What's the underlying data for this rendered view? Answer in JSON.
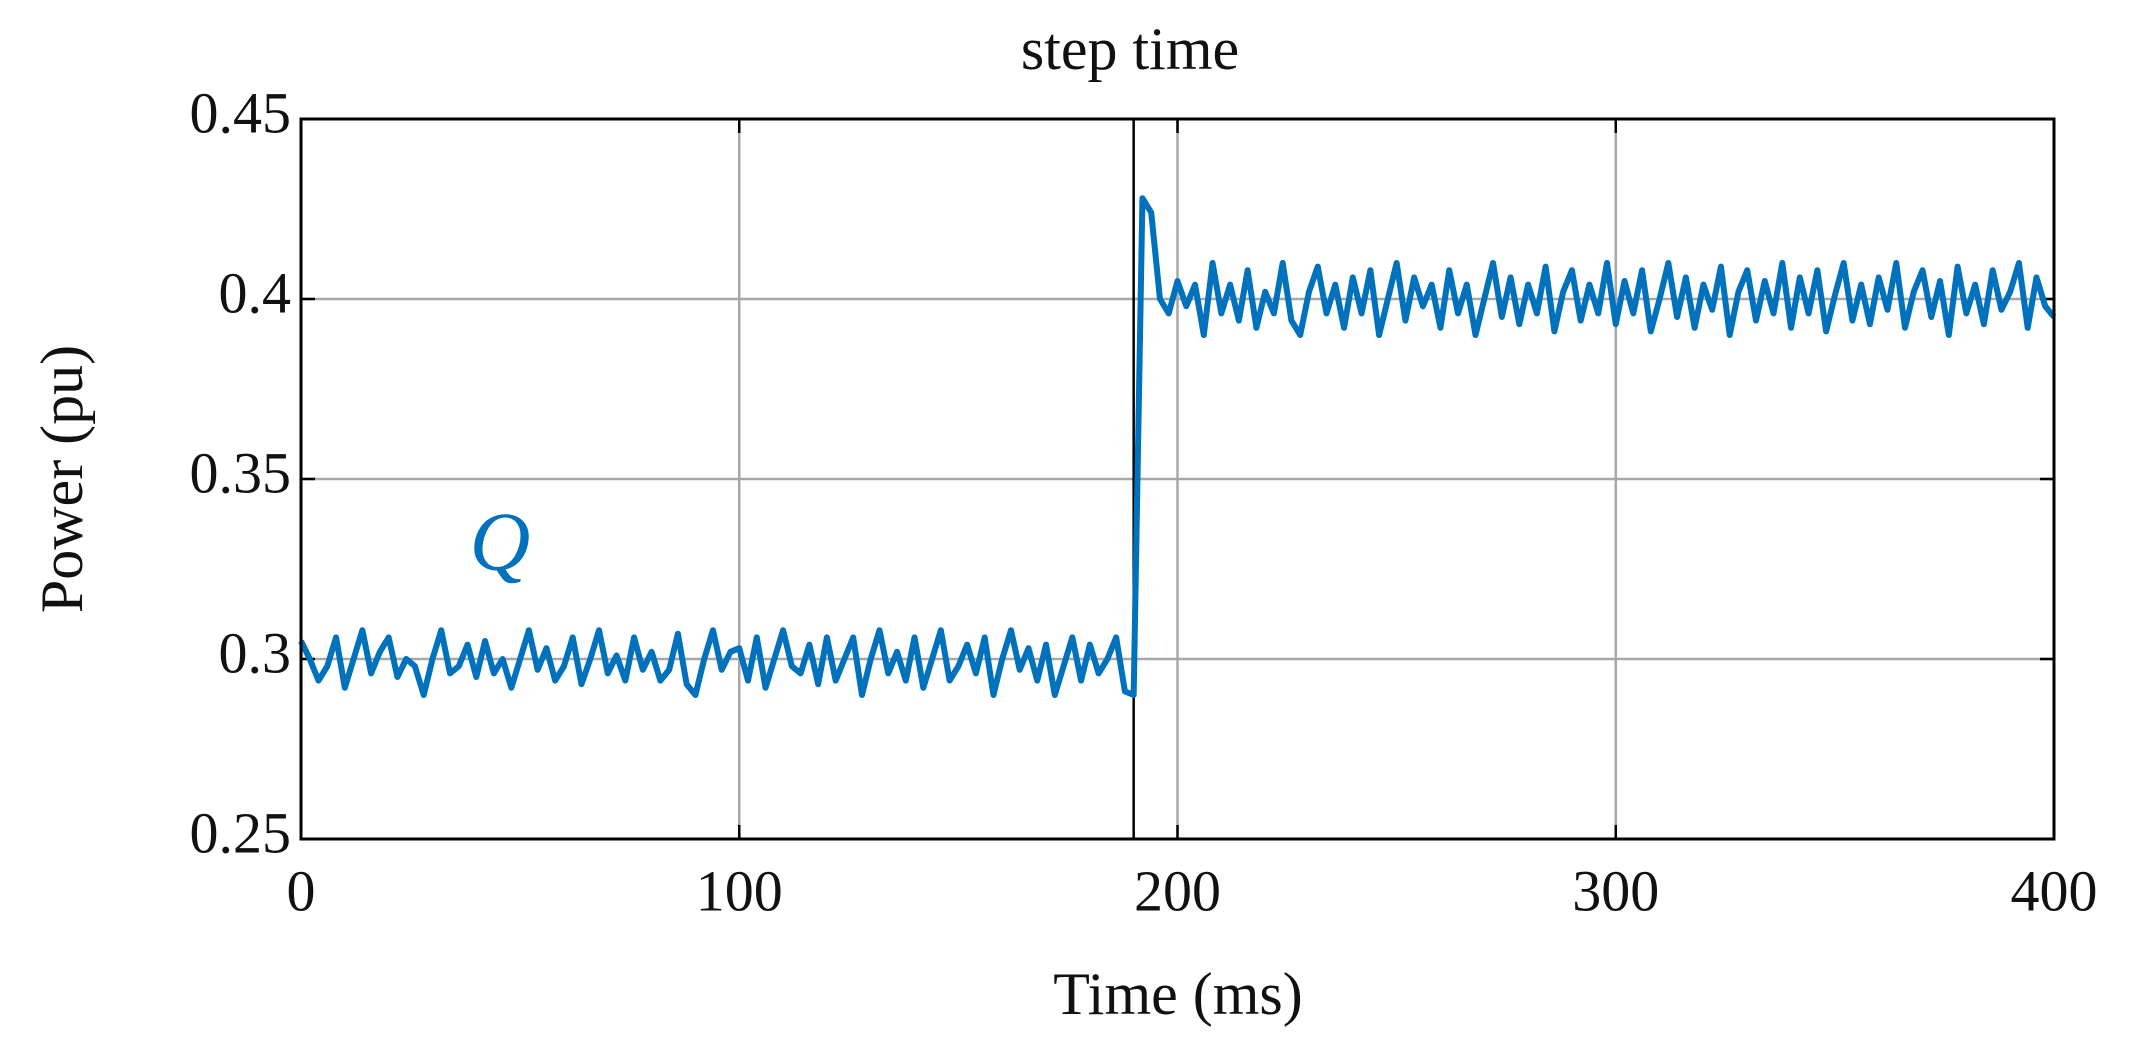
{
  "chart_data": {
    "type": "line",
    "title": "step time",
    "xlabel": "Time (ms)",
    "ylabel": "Power (pu)",
    "x": [
      0,
      2,
      4,
      6,
      8,
      10,
      12,
      14,
      16,
      18,
      20,
      22,
      24,
      26,
      28,
      30,
      32,
      34,
      36,
      38,
      40,
      42,
      44,
      46,
      48,
      50,
      52,
      54,
      56,
      58,
      60,
      62,
      64,
      66,
      68,
      70,
      72,
      74,
      76,
      78,
      80,
      82,
      84,
      86,
      88,
      90,
      92,
      94,
      96,
      98,
      100,
      102,
      104,
      106,
      108,
      110,
      112,
      114,
      116,
      118,
      120,
      122,
      124,
      126,
      128,
      130,
      132,
      134,
      136,
      138,
      140,
      142,
      144,
      146,
      148,
      150,
      152,
      154,
      156,
      158,
      160,
      162,
      164,
      166,
      168,
      170,
      172,
      174,
      176,
      178,
      180,
      182,
      184,
      186,
      188,
      190,
      192,
      194,
      196,
      198,
      200,
      202,
      204,
      206,
      208,
      210,
      212,
      214,
      216,
      218,
      220,
      222,
      224,
      226,
      228,
      230,
      232,
      234,
      236,
      238,
      240,
      242,
      244,
      246,
      248,
      250,
      252,
      254,
      256,
      258,
      260,
      262,
      264,
      266,
      268,
      270,
      272,
      274,
      276,
      278,
      280,
      282,
      284,
      286,
      288,
      290,
      292,
      294,
      296,
      298,
      300,
      302,
      304,
      306,
      308,
      310,
      312,
      314,
      316,
      318,
      320,
      322,
      324,
      326,
      328,
      330,
      332,
      334,
      336,
      338,
      340,
      342,
      344,
      346,
      348,
      350,
      352,
      354,
      356,
      358,
      360,
      362,
      364,
      366,
      368,
      370,
      372,
      374,
      376,
      378,
      380,
      382,
      384,
      386,
      388,
      390,
      392,
      394,
      396,
      398,
      400
    ],
    "series": [
      {
        "name": "Q",
        "color": "#0072bd",
        "values": [
          0.305,
          0.3,
          0.294,
          0.298,
          0.306,
          0.292,
          0.3,
          0.308,
          0.296,
          0.302,
          0.306,
          0.295,
          0.3,
          0.298,
          0.29,
          0.3,
          0.308,
          0.296,
          0.298,
          0.304,
          0.295,
          0.305,
          0.296,
          0.3,
          0.292,
          0.3,
          0.308,
          0.297,
          0.303,
          0.294,
          0.298,
          0.306,
          0.293,
          0.3,
          0.308,
          0.296,
          0.301,
          0.294,
          0.306,
          0.297,
          0.302,
          0.294,
          0.297,
          0.307,
          0.293,
          0.29,
          0.3,
          0.308,
          0.297,
          0.302,
          0.303,
          0.294,
          0.306,
          0.292,
          0.3,
          0.308,
          0.298,
          0.296,
          0.304,
          0.293,
          0.306,
          0.294,
          0.3,
          0.306,
          0.29,
          0.3,
          0.308,
          0.296,
          0.302,
          0.294,
          0.306,
          0.292,
          0.3,
          0.308,
          0.294,
          0.298,
          0.304,
          0.296,
          0.306,
          0.29,
          0.3,
          0.308,
          0.297,
          0.303,
          0.294,
          0.304,
          0.29,
          0.298,
          0.306,
          0.294,
          0.304,
          0.296,
          0.3,
          0.306,
          0.291,
          0.29,
          0.428,
          0.424,
          0.4,
          0.396,
          0.405,
          0.398,
          0.404,
          0.39,
          0.41,
          0.396,
          0.404,
          0.394,
          0.408,
          0.392,
          0.402,
          0.396,
          0.41,
          0.394,
          0.39,
          0.402,
          0.409,
          0.396,
          0.404,
          0.392,
          0.406,
          0.396,
          0.408,
          0.39,
          0.4,
          0.41,
          0.394,
          0.406,
          0.398,
          0.404,
          0.392,
          0.408,
          0.396,
          0.404,
          0.39,
          0.4,
          0.41,
          0.395,
          0.406,
          0.393,
          0.404,
          0.396,
          0.409,
          0.391,
          0.402,
          0.408,
          0.394,
          0.404,
          0.396,
          0.41,
          0.393,
          0.405,
          0.396,
          0.408,
          0.391,
          0.4,
          0.41,
          0.395,
          0.406,
          0.392,
          0.404,
          0.397,
          0.409,
          0.39,
          0.402,
          0.408,
          0.394,
          0.405,
          0.396,
          0.41,
          0.392,
          0.406,
          0.396,
          0.408,
          0.391,
          0.401,
          0.41,
          0.394,
          0.404,
          0.393,
          0.406,
          0.397,
          0.41,
          0.392,
          0.402,
          0.408,
          0.395,
          0.405,
          0.39,
          0.409,
          0.396,
          0.404,
          0.393,
          0.408,
          0.397,
          0.402,
          0.41,
          0.392,
          0.406,
          0.398,
          0.395
        ]
      }
    ],
    "vlines": [
      190
    ],
    "xlim": [
      0,
      400
    ],
    "xticks": [
      0,
      100,
      200,
      300,
      400
    ],
    "ylim": [
      0.25,
      0.45
    ],
    "yticks": [
      0.25,
      0.3,
      0.35,
      0.4,
      0.45
    ],
    "grid": true
  }
}
